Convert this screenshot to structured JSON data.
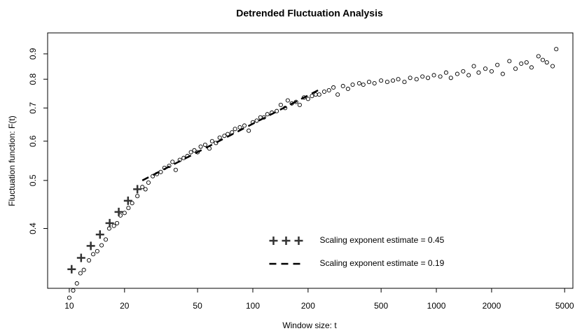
{
  "chart_data": {
    "type": "scatter",
    "title": "Detrended Fluctuation Analysis",
    "xlabel": "Window size: t",
    "ylabel": "Fluctuation function: F(t)",
    "log_x": true,
    "log_y": true,
    "xlim": [
      7.62,
      5546
    ],
    "ylim": [
      0.303,
      0.992
    ],
    "xticks": [
      10,
      20,
      50,
      100,
      200,
      500,
      1000,
      2000,
      5000
    ],
    "yticks": [
      0.4,
      0.5,
      0.6,
      0.7,
      0.8,
      0.9
    ],
    "legend": "bottom-right",
    "series": [
      {
        "marker": "circle",
        "color": "#000000",
        "x": [
          10,
          10.5,
          11,
          11.5,
          12,
          12.8,
          13.5,
          14.2,
          15,
          15.8,
          16.5,
          17.5,
          18.2,
          19,
          20,
          21,
          22,
          23.5,
          25,
          26,
          27,
          28.5,
          30,
          31.5,
          33,
          35,
          36.5,
          38,
          40,
          42,
          44,
          46,
          48,
          50,
          52,
          55,
          58,
          60,
          63,
          66,
          70,
          73,
          77,
          80,
          85,
          90,
          95,
          100,
          105,
          110,
          115,
          120,
          127,
          135,
          142,
          150,
          155,
          163,
          172,
          180,
          190,
          200,
          210,
          220,
          230,
          245,
          260,
          275,
          290,
          310,
          330,
          350,
          380,
          400,
          430,
          460,
          500,
          540,
          580,
          620,
          670,
          720,
          780,
          840,
          900,
          970,
          1050,
          1130,
          1200,
          1300,
          1400,
          1500,
          1600,
          1700,
          1850,
          2000,
          2150,
          2300,
          2500,
          2700,
          2900,
          3100,
          3300,
          3600,
          3800,
          4000,
          4300,
          4500
        ],
        "values": [
          0.29,
          0.3,
          0.31,
          0.325,
          0.33,
          0.345,
          0.355,
          0.36,
          0.37,
          0.38,
          0.4,
          0.405,
          0.41,
          0.425,
          0.43,
          0.44,
          0.45,
          0.465,
          0.485,
          0.48,
          0.495,
          0.51,
          0.515,
          0.52,
          0.53,
          0.535,
          0.545,
          0.525,
          0.55,
          0.555,
          0.56,
          0.57,
          0.575,
          0.57,
          0.585,
          0.59,
          0.58,
          0.6,
          0.595,
          0.61,
          0.615,
          0.62,
          0.625,
          0.635,
          0.64,
          0.645,
          0.63,
          0.655,
          0.66,
          0.67,
          0.67,
          0.68,
          0.685,
          0.69,
          0.71,
          0.7,
          0.725,
          0.715,
          0.72,
          0.71,
          0.735,
          0.73,
          0.74,
          0.745,
          0.745,
          0.755,
          0.76,
          0.77,
          0.745,
          0.775,
          0.765,
          0.78,
          0.785,
          0.78,
          0.79,
          0.785,
          0.795,
          0.79,
          0.795,
          0.8,
          0.79,
          0.805,
          0.8,
          0.81,
          0.805,
          0.815,
          0.81,
          0.825,
          0.805,
          0.82,
          0.83,
          0.815,
          0.85,
          0.825,
          0.84,
          0.83,
          0.855,
          0.82,
          0.87,
          0.84,
          0.86,
          0.865,
          0.845,
          0.89,
          0.875,
          0.865,
          0.85,
          0.92
        ]
      },
      {
        "name": "Scaling exponent estimate = 0.45",
        "marker": "plus",
        "color": "#333333",
        "x": [
          10.3,
          11.6,
          13.1,
          14.7,
          16.6,
          18.6,
          20.9,
          23.5
        ],
        "values": [
          0.331,
          0.349,
          0.369,
          0.389,
          0.41,
          0.432,
          0.455,
          0.48
        ]
      },
      {
        "name": "Scaling exponent estimate = 0.19",
        "marker": "dashed-line",
        "color": "#000000",
        "x": [
          25,
          230
        ],
        "values": [
          0.5,
          0.762
        ]
      }
    ]
  }
}
